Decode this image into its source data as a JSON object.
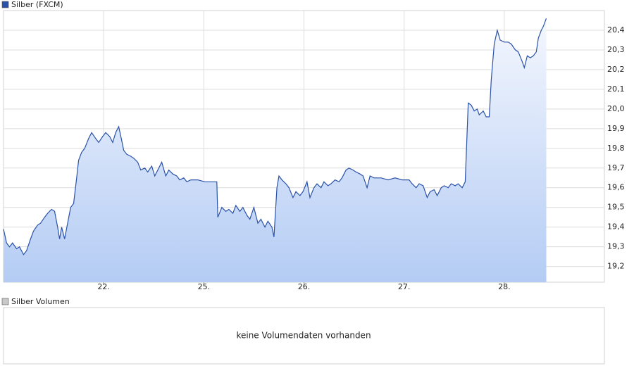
{
  "chart_data": [
    {
      "type": "line",
      "area": true,
      "grid": true,
      "series": [
        {
          "name": "Silber (FXCM)",
          "color": "#2a52a8",
          "values": [
            19.39,
            19.32,
            19.3,
            19.32,
            19.29,
            19.3,
            19.26,
            19.28,
            19.34,
            19.38,
            19.41,
            19.42,
            19.45,
            19.47,
            19.49,
            19.48,
            19.4,
            19.34,
            19.4,
            19.34,
            19.42,
            19.5,
            19.52,
            19.65,
            19.74,
            19.78,
            19.8,
            19.85,
            19.88,
            19.85,
            19.83,
            19.86,
            19.88,
            19.86,
            19.83,
            19.88,
            19.91,
            19.84,
            19.79,
            19.77,
            19.76,
            19.75,
            19.73,
            19.69,
            19.7,
            19.68,
            19.71,
            19.66,
            19.7,
            19.73,
            19.66,
            19.69,
            19.67,
            19.66,
            19.64,
            19.65,
            19.63,
            19.64,
            19.64,
            19.63,
            19.63,
            19.45,
            19.5,
            19.48,
            19.49,
            19.47,
            19.51,
            19.48,
            19.5,
            19.46,
            19.44,
            19.5,
            19.42,
            19.44,
            19.4,
            19.43,
            19.4,
            19.35,
            19.6,
            19.66,
            19.64,
            19.62,
            19.6,
            19.55,
            19.58,
            19.56,
            19.58,
            19.63,
            19.55,
            19.6,
            19.62,
            19.6,
            19.63,
            19.61,
            19.62,
            19.64,
            19.63,
            19.65,
            19.69,
            19.7,
            19.69,
            19.68,
            19.67,
            19.66,
            19.6,
            19.66,
            19.65,
            19.65,
            19.64,
            19.65,
            19.64,
            19.64,
            19.62,
            19.6,
            19.62,
            19.61,
            19.55,
            19.58,
            19.59,
            19.56,
            19.6,
            19.61,
            19.6,
            19.62,
            19.61,
            19.62,
            19.6,
            19.63,
            20.03,
            20.02,
            19.99,
            20.0,
            19.97,
            19.99,
            19.96,
            19.96,
            20.15,
            20.33,
            20.4,
            20.35,
            20.34,
            20.34,
            20.33,
            20.3,
            20.29,
            20.24,
            20.21,
            20.27,
            20.26,
            20.27,
            20.29,
            20.36,
            20.4,
            20.42,
            20.46
          ]
        }
      ],
      "x": [
        0,
        0.03,
        0.06,
        0.09,
        0.13,
        0.16,
        0.2,
        0.23,
        0.27,
        0.3,
        0.34,
        0.37,
        0.41,
        0.44,
        0.48,
        0.51,
        0.54,
        0.56,
        0.58,
        0.61,
        0.64,
        0.67,
        0.7,
        0.73,
        0.75,
        0.78,
        0.81,
        0.85,
        0.88,
        0.92,
        0.95,
        0.99,
        1.02,
        1.06,
        1.09,
        1.12,
        1.15,
        1.18,
        1.2,
        1.23,
        1.27,
        1.3,
        1.34,
        1.37,
        1.41,
        1.44,
        1.48,
        1.51,
        1.55,
        1.58,
        1.62,
        1.65,
        1.69,
        1.73,
        1.76,
        1.8,
        1.83,
        1.87,
        1.94,
        2.01,
        2.13,
        2.14,
        2.18,
        2.22,
        2.25,
        2.29,
        2.32,
        2.36,
        2.39,
        2.43,
        2.46,
        2.5,
        2.54,
        2.57,
        2.61,
        2.64,
        2.68,
        2.7,
        2.73,
        2.75,
        2.78,
        2.82,
        2.85,
        2.89,
        2.92,
        2.96,
        2.99,
        3.03,
        3.06,
        3.1,
        3.13,
        3.17,
        3.2,
        3.24,
        3.27,
        3.31,
        3.35,
        3.38,
        3.42,
        3.45,
        3.49,
        3.52,
        3.56,
        3.59,
        3.63,
        3.66,
        3.7,
        3.77,
        3.84,
        3.91,
        3.98,
        4.05,
        4.08,
        4.12,
        4.15,
        4.19,
        4.23,
        4.26,
        4.3,
        4.33,
        4.37,
        4.4,
        4.44,
        4.47,
        4.51,
        4.54,
        4.58,
        4.61,
        4.64,
        4.67,
        4.7,
        4.73,
        4.75,
        4.79,
        4.82,
        4.85,
        4.87,
        4.9,
        4.93,
        4.96,
        5.0,
        5.04,
        5.07,
        5.11,
        5.14,
        5.18,
        5.2,
        5.23,
        5.26,
        5.29,
        5.32,
        5.34,
        5.37,
        5.39,
        5.42
      ],
      "xlim": [
        0,
        6
      ],
      "xticks": [
        {
          "value": 1,
          "label": "22."
        },
        {
          "value": 2,
          "label": "25."
        },
        {
          "value": 3,
          "label": "26."
        },
        {
          "value": 4,
          "label": "27."
        },
        {
          "value": 5,
          "label": "28."
        }
      ],
      "ylim": [
        19.12,
        20.5
      ],
      "yticks": [
        {
          "value": 19.2,
          "label": "19,2"
        },
        {
          "value": 19.3,
          "label": "19,3"
        },
        {
          "value": 19.4,
          "label": "19,4"
        },
        {
          "value": 19.5,
          "label": "19,5"
        },
        {
          "value": 19.6,
          "label": "19,6"
        },
        {
          "value": 19.7,
          "label": "19,7"
        },
        {
          "value": 19.8,
          "label": "19,8"
        },
        {
          "value": 19.9,
          "label": "19,9"
        },
        {
          "value": 20.0,
          "label": "20,0"
        },
        {
          "value": 20.1,
          "label": "20,1"
        },
        {
          "value": 20.2,
          "label": "20,2"
        },
        {
          "value": 20.3,
          "label": "20,3"
        },
        {
          "value": 20.4,
          "label": "20,4"
        }
      ]
    },
    {
      "type": "empty",
      "series": [
        {
          "name": "Silber Volumen",
          "color": "#c8c8c8"
        }
      ],
      "message": "keine Volumendaten vorhanden"
    }
  ]
}
